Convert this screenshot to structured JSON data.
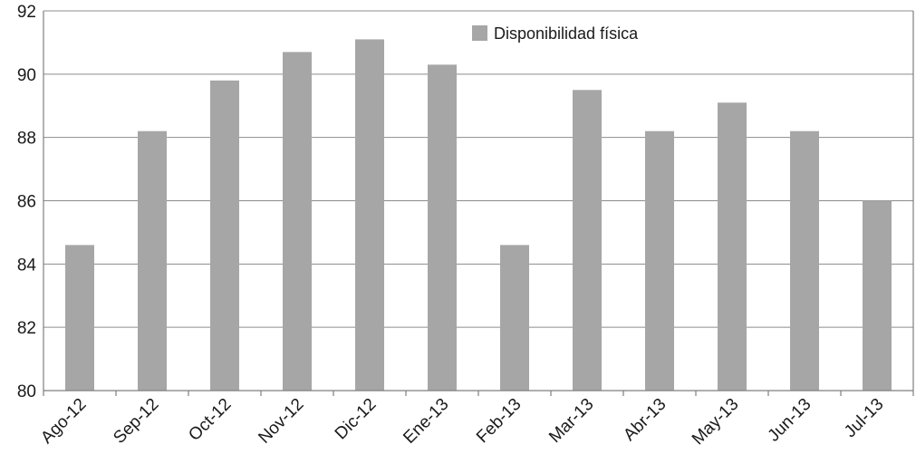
{
  "chart_data": {
    "type": "bar",
    "categories": [
      "Ago-12",
      "Sep-12",
      "Oct-12",
      "Nov-12",
      "Dic-12",
      "Ene-13",
      "Feb-13",
      "Mar-13",
      "Abr-13",
      "May-13",
      "Jun-13",
      "Jul-13"
    ],
    "series": [
      {
        "name": "Disponibilidad física",
        "values": [
          84.6,
          88.2,
          89.8,
          90.7,
          91.1,
          90.3,
          84.6,
          89.5,
          88.2,
          89.1,
          88.2,
          86.0
        ]
      }
    ],
    "ylim": [
      80,
      92
    ],
    "yticks": [
      80,
      82,
      84,
      86,
      88,
      90,
      92
    ],
    "grid": true,
    "legend_position": "top-right",
    "colors": {
      "bar": "#a6a6a6",
      "grid": "#8c8c8c",
      "axis": "#7f7f7f"
    }
  }
}
